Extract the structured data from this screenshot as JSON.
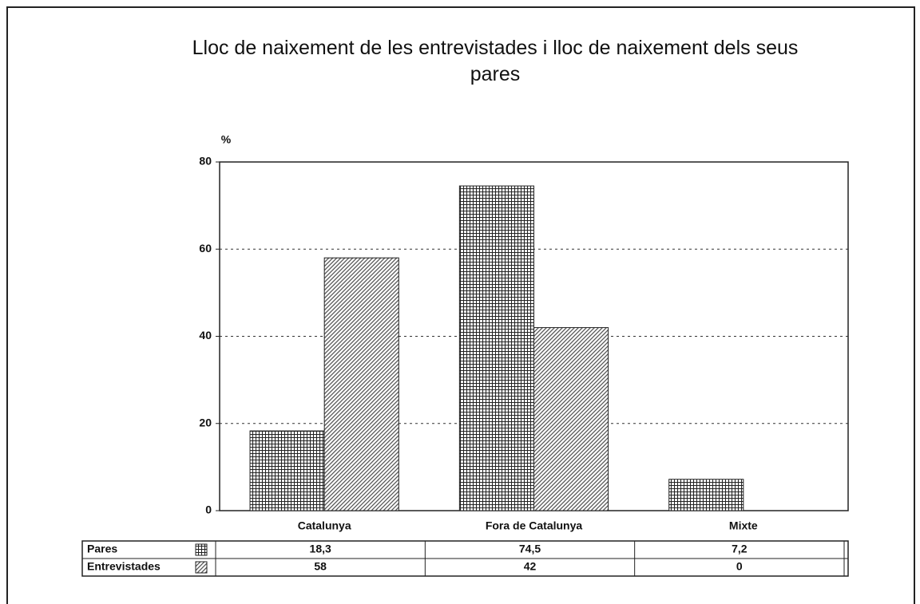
{
  "chart_data": {
    "type": "bar",
    "title": "Lloc de naixement de les entrevistades i lloc de naixement dels seus pares",
    "ylabel": "%",
    "categories": [
      "Catalunya",
      "Fora de Catalunya",
      "Mixte"
    ],
    "series": [
      {
        "name": "Pares",
        "color": "#222222",
        "values": [
          18.3,
          74.5,
          7.2
        ],
        "value_labels": [
          "18,3",
          "74,5",
          "7,2"
        ]
      },
      {
        "name": "Entrevistades",
        "color": "#555555",
        "values": [
          58,
          42,
          0
        ]
      }
    ],
    "ylim": [
      0,
      80
    ],
    "yticks": [
      0,
      20,
      40,
      60,
      80
    ],
    "grid": true
  }
}
